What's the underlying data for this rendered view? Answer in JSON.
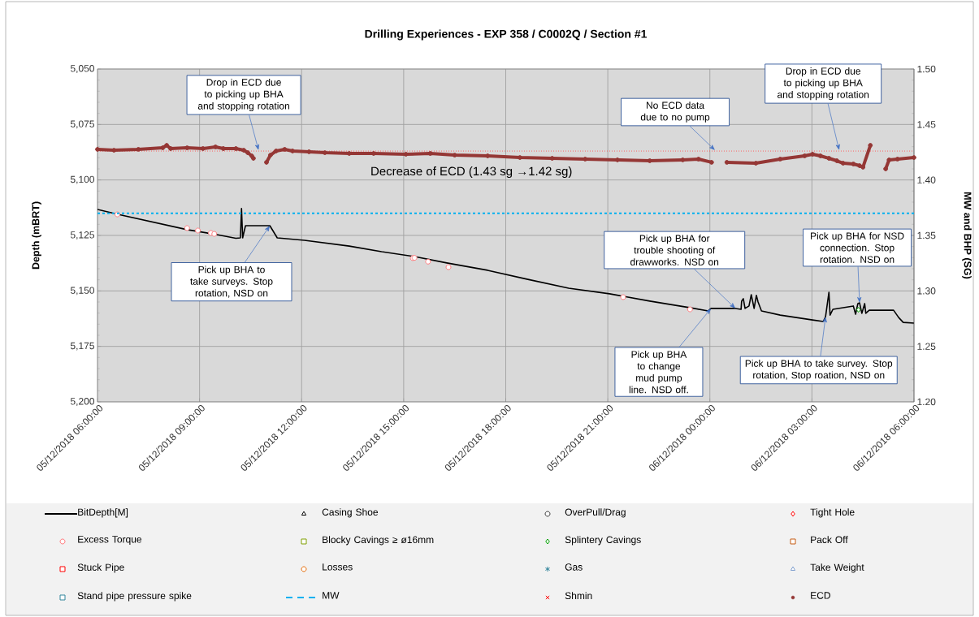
{
  "chart_data": {
    "type": "line",
    "title": "Drilling Experiences - EXP 358 / C0002Q / Section #1",
    "ylabel": "Depth  (mBRT)",
    "y2label": "MW and BHP (SG)",
    "xlim": [
      "2018-12-05T06:00",
      "2018-12-06T06:00"
    ],
    "xticks": [
      {
        "value": "2018-12-05T06:00",
        "label": "05/12/2018 06:00:00"
      },
      {
        "value": "2018-12-05T09:00",
        "label": "05/12/2018 09:00:00"
      },
      {
        "value": "2018-12-05T12:00",
        "label": "05/12/2018 12:00:00"
      },
      {
        "value": "2018-12-05T15:00",
        "label": "05/12/2018 15:00:00"
      },
      {
        "value": "2018-12-05T18:00",
        "label": "05/12/2018 18:00:00"
      },
      {
        "value": "2018-12-05T21:00",
        "label": "05/12/2018 21:00:00"
      },
      {
        "value": "2018-12-06T00:00",
        "label": "06/12/2018 00:00:00"
      },
      {
        "value": "2018-12-06T03:00",
        "label": "06/12/2018 03:00:00"
      },
      {
        "value": "2018-12-06T06:00",
        "label": "06/12/2018 06:00:00"
      }
    ],
    "ylim": [
      5200,
      5050
    ],
    "yticks": [
      {
        "value": 5050,
        "label": "5,050"
      },
      {
        "value": 5075,
        "label": "5,075"
      },
      {
        "value": 5100,
        "label": "5,100"
      },
      {
        "value": 5125,
        "label": "5,125"
      },
      {
        "value": 5150,
        "label": "5,150"
      },
      {
        "value": 5175,
        "label": "5,175"
      },
      {
        "value": 5200,
        "label": "5,200"
      }
    ],
    "y2lim": [
      1.2,
      1.5
    ],
    "y2ticks": [
      {
        "value": 1.2,
        "label": "1.20"
      },
      {
        "value": 1.25,
        "label": "1.25"
      },
      {
        "value": 1.3,
        "label": "1.30"
      },
      {
        "value": 1.35,
        "label": "1.35"
      },
      {
        "value": 1.4,
        "label": "1.40"
      },
      {
        "value": 1.45,
        "label": "1.45"
      },
      {
        "value": 1.5,
        "label": "1.50"
      }
    ],
    "grid": true,
    "legend": "bottom",
    "ref_lines": [
      {
        "axis": "y2",
        "value": 1.426,
        "color": "#ff5050",
        "line_style": "dotted"
      }
    ],
    "series": [
      {
        "name": "BitDepth[M]",
        "color": "#000000",
        "marker": "none",
        "x": [
          "2018-12-05T06:00",
          "2018-12-05T06:36",
          "2018-12-05T08:38",
          "2018-12-05T09:23",
          "2018-12-05T10:04",
          "2018-12-05T10:12",
          "2018-12-05T10:14",
          "2018-12-05T10:16",
          "2018-12-05T10:21",
          "2018-12-05T10:25",
          "2018-12-05T11:04",
          "2018-12-05T11:17",
          "2018-12-05T12:05",
          "2018-12-05T13:24",
          "2018-12-05T14:21",
          "2018-12-05T15:19",
          "2018-12-05T16:16",
          "2018-12-05T17:28",
          "2018-12-05T18:39",
          "2018-12-05T19:51",
          "2018-12-05T21:03",
          "2018-12-05T22:14",
          "2018-12-05T23:26",
          "2018-12-05T23:57",
          "2018-12-06T00:02",
          "2018-12-06T00:45",
          "2018-12-06T00:55",
          "2018-12-06T00:56",
          "2018-12-06T00:59",
          "2018-12-06T01:02",
          "2018-12-06T01:09",
          "2018-12-06T01:13",
          "2018-12-06T01:18",
          "2018-12-06T01:22",
          "2018-12-06T01:25",
          "2018-12-06T01:31",
          "2018-12-06T02:04",
          "2018-12-06T03:01",
          "2018-12-06T03:20",
          "2018-12-06T03:24",
          "2018-12-06T03:30",
          "2018-12-06T03:32",
          "2018-12-06T03:37",
          "2018-12-06T04:13",
          "2018-12-06T04:17",
          "2018-12-06T04:21",
          "2018-12-06T04:24",
          "2018-12-06T04:28",
          "2018-12-06T04:33",
          "2018-12-06T04:35",
          "2018-12-06T04:41",
          "2018-12-06T05:24",
          "2018-12-06T05:33",
          "2018-12-06T05:41",
          "2018-12-06T06:00"
        ],
        "values": [
          5113.3,
          5115.5,
          5122.4,
          5124.3,
          5126.3,
          5126.1,
          5112.9,
          5126.1,
          5120.6,
          5120.6,
          5120.6,
          5126.1,
          5127.2,
          5129.8,
          5132.3,
          5134.5,
          5137.4,
          5140.7,
          5144.8,
          5148.8,
          5151.3,
          5154.6,
          5157.6,
          5159.0,
          5157.9,
          5157.9,
          5158.3,
          5154.6,
          5153.5,
          5157.9,
          5156.8,
          5151.7,
          5157.9,
          5152.0,
          5155.0,
          5159.0,
          5160.9,
          5163.1,
          5163.8,
          5161.6,
          5150.6,
          5160.9,
          5158.3,
          5156.8,
          5160.5,
          5155.7,
          5155.4,
          5160.1,
          5155.7,
          5160.1,
          5158.7,
          5158.7,
          5162.0,
          5164.2,
          5164.5
        ]
      },
      {
        "name": "Casing Shoe",
        "type": "scatter",
        "color": "#000000",
        "marker": "triangle"
      },
      {
        "name": "OverPull/Drag",
        "type": "scatter",
        "color": "#404040",
        "marker": "circle"
      },
      {
        "name": "Tight Hole",
        "type": "scatter",
        "color": "#ff0000",
        "marker": "diamond"
      },
      {
        "name": "Excess Torque",
        "type": "scatter",
        "color": "#ff7c80",
        "marker": "circle",
        "x": [
          "2018-12-05T06:35",
          "2018-12-05T08:38",
          "2018-12-05T08:57",
          "2018-12-05T09:20",
          "2018-12-05T09:26",
          "2018-12-05T15:16",
          "2018-12-05T15:19",
          "2018-12-05T15:43",
          "2018-12-05T16:19",
          "2018-12-05T21:27",
          "2018-12-05T23:25"
        ],
        "values": [
          5115.5,
          5121.7,
          5122.8,
          5123.9,
          5124.3,
          5135.2,
          5135.1,
          5136.8,
          5139.3,
          5152.8,
          5158.3
        ]
      },
      {
        "name": "Blocky Cavings ≥ ø16mm",
        "type": "scatter",
        "color": "#7fa000",
        "marker": "square"
      },
      {
        "name": "Splintery Cavings",
        "type": "scatter",
        "color": "#00a000",
        "marker": "diamond",
        "x": [
          "2018-12-06T04:22"
        ],
        "values": [
          5158.5
        ]
      },
      {
        "name": "Pack Off",
        "type": "scatter",
        "color": "#c55a11",
        "marker": "square"
      },
      {
        "name": "Stuck Pipe",
        "type": "scatter",
        "color": "#ff0000",
        "marker": "square"
      },
      {
        "name": "Losses",
        "type": "scatter",
        "color": "#e46c0a",
        "marker": "circle"
      },
      {
        "name": "Gas",
        "type": "scatter",
        "color": "#31859c",
        "marker": "star"
      },
      {
        "name": "Take Weight",
        "type": "scatter",
        "color": "#7f9fcf",
        "marker": "triangle"
      },
      {
        "name": "Stand pipe pressure spike",
        "type": "scatter",
        "color": "#31859c",
        "marker": "square"
      },
      {
        "name": "MW",
        "axis": "y2",
        "color": "#00b0f0",
        "marker": "none",
        "line_style": "dashed",
        "x": [
          "2018-12-05T06:00",
          "2018-12-06T06:00"
        ],
        "values": [
          1.37,
          1.37
        ]
      },
      {
        "name": "Shmin",
        "type": "scatter",
        "color": "#ff0000",
        "marker": "cross"
      },
      {
        "name": "ECD",
        "axis": "y2",
        "color": "#953735",
        "marker": "circle",
        "x": [
          "2018-12-05T06:00",
          "2018-12-05T06:29",
          "2018-12-05T07:12",
          "2018-12-05T07:55",
          "2018-12-05T08:02",
          "2018-12-05T08:09",
          "2018-12-05T08:38",
          "2018-12-05T09:06",
          "2018-12-05T09:28",
          "2018-12-05T09:42",
          "2018-12-05T10:04",
          "2018-12-05T10:18",
          "2018-12-05T10:25",
          "2018-12-05T10:32",
          "2018-12-05T10:35",
          "2018-12-05T10:50",
          "2018-12-05T10:58",
          "2018-12-05T11:05",
          "2018-12-05T11:15",
          "2018-12-05T11:30",
          "2018-12-05T11:44",
          "2018-12-05T12:13",
          "2018-12-05T12:41",
          "2018-12-05T13:24",
          "2018-12-05T14:07",
          "2018-12-05T15:04",
          "2018-12-05T15:47",
          "2018-12-05T16:30",
          "2018-12-05T17:28",
          "2018-12-05T18:25",
          "2018-12-05T19:22",
          "2018-12-05T20:20",
          "2018-12-05T21:17",
          "2018-12-05T22:14",
          "2018-12-05T23:12",
          "2018-12-05T23:40",
          "2018-12-06T00:03",
          "2018-12-06T00:15",
          "2018-12-06T00:30",
          "2018-12-06T01:21",
          "2018-12-06T02:04",
          "2018-12-06T02:47",
          "2018-12-06T03:01",
          "2018-12-06T03:15",
          "2018-12-06T03:30",
          "2018-12-06T03:44",
          "2018-12-06T03:55",
          "2018-12-06T04:13",
          "2018-12-06T04:24",
          "2018-12-06T04:30",
          "2018-12-06T04:43",
          "2018-12-06T04:55",
          "2018-12-06T05:10",
          "2018-12-06T05:16",
          "2018-12-06T05:31",
          "2018-12-06T06:00"
        ],
        "values": [
          1.4276,
          1.4268,
          1.4276,
          1.429,
          1.4312,
          1.4283,
          1.429,
          1.4283,
          1.4298,
          1.4283,
          1.4283,
          1.4268,
          1.4246,
          1.4217,
          1.4195,
          null,
          1.4159,
          1.4224,
          1.4261,
          1.4276,
          1.4261,
          1.4254,
          1.4246,
          1.4239,
          1.4239,
          1.4232,
          1.4239,
          1.4224,
          1.4217,
          1.4202,
          1.4195,
          1.4188,
          1.4181,
          1.4173,
          1.4181,
          1.4188,
          1.4159,
          null,
          1.4159,
          1.4151,
          1.4188,
          1.4217,
          1.4232,
          1.4217,
          1.4195,
          1.4173,
          1.4151,
          1.4144,
          1.4129,
          1.4115,
          1.4312,
          null,
          1.41,
          1.4181,
          1.4188,
          1.4202
        ]
      }
    ],
    "annotations": [
      {
        "text": "Drop in ECD due to picking up BHA and stopping rotation",
        "x": "2018-12-05T10:44",
        "y": 5086.6
      },
      {
        "text": "No ECD data due to no pump",
        "x": "2018-12-06T00:09",
        "y": 5086.6
      },
      {
        "text": "Drop in ECD due to picking up BHA and stopping rotation",
        "x": "2018-12-06T03:48",
        "y": 5086.6
      },
      "Decrease of ECD (1.43 sg →1.42 sg)",
      {
        "text": "Pick up BHA to take surveys. Stop rotation, NSD on",
        "x": "2018-12-05T11:04",
        "y": 5120.6
      },
      {
        "text": "Pick up BHA for trouble shooting of drawworks. NSD on",
        "x": "2018-12-06T00:45",
        "y": 5157.9
      },
      {
        "text": "Pick up BHA for NSD connection. Stop rotation. NSD on",
        "x": "2018-12-06T04:24",
        "y": 5155.4
      },
      {
        "text": "Pick up BHA to change mud pump line. NSD off.",
        "x": "2018-12-06T00:02",
        "y": 5157.9
      },
      {
        "text": "Pick up BHA to take survey. Stop rotation, Stop roation, NSD on",
        "x": "2018-12-06T03:24",
        "y": 5161.6
      }
    ]
  }
}
